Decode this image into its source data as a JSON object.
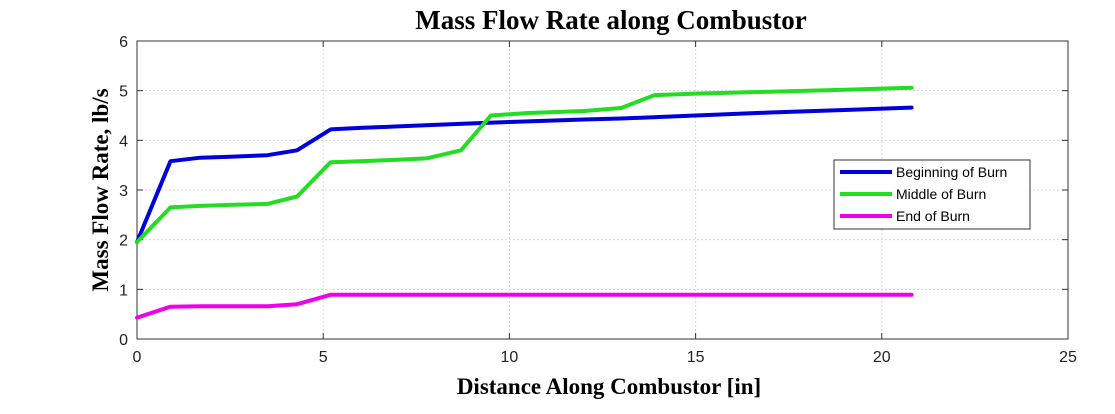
{
  "chart_data": {
    "type": "line",
    "title": "Mass Flow Rate along Combustor",
    "xlabel": "Distance Along Combustor [in]",
    "ylabel": "Mass Flow Rate, lb/s",
    "xlim": [
      0,
      25
    ],
    "ylim": [
      0,
      6
    ],
    "xticks": [
      0,
      5,
      10,
      15,
      20,
      25
    ],
    "yticks": [
      0,
      1,
      2,
      3,
      4,
      5,
      6
    ],
    "grid": true,
    "legend_position": "right",
    "series": [
      {
        "name": "Beginning of Burn",
        "color": "#0000dd",
        "x": [
          0,
          0.9,
          1.7,
          2.5,
          3.5,
          4.3,
          5.2,
          6.0,
          7.0,
          8.0,
          9.0,
          10.0,
          12.0,
          13.0,
          15.0,
          17.0,
          19.0,
          20.8
        ],
        "y": [
          1.95,
          3.58,
          3.65,
          3.67,
          3.7,
          3.8,
          4.22,
          4.25,
          4.28,
          4.31,
          4.34,
          4.37,
          4.42,
          4.44,
          4.5,
          4.56,
          4.61,
          4.66
        ]
      },
      {
        "name": "Middle of Burn",
        "color": "#22dd22",
        "x": [
          0,
          0.9,
          1.7,
          2.5,
          3.5,
          4.3,
          5.2,
          6.0,
          7.0,
          7.8,
          8.7,
          9.5,
          10.5,
          12.0,
          13.0,
          13.9,
          15.0,
          17.0,
          19.0,
          20.8
        ],
        "y": [
          1.95,
          2.65,
          2.68,
          2.7,
          2.72,
          2.87,
          3.56,
          3.58,
          3.61,
          3.64,
          3.8,
          4.5,
          4.55,
          4.59,
          4.65,
          4.91,
          4.94,
          4.98,
          5.02,
          5.06
        ]
      },
      {
        "name": "End of Burn",
        "color": "#ee00ee",
        "x": [
          0,
          0.9,
          1.7,
          2.5,
          3.5,
          4.3,
          5.2,
          7.0,
          10.0,
          13.0,
          16.0,
          19.0,
          20.8
        ],
        "y": [
          0.43,
          0.65,
          0.66,
          0.66,
          0.66,
          0.7,
          0.89,
          0.89,
          0.89,
          0.89,
          0.89,
          0.89,
          0.89
        ]
      }
    ]
  }
}
